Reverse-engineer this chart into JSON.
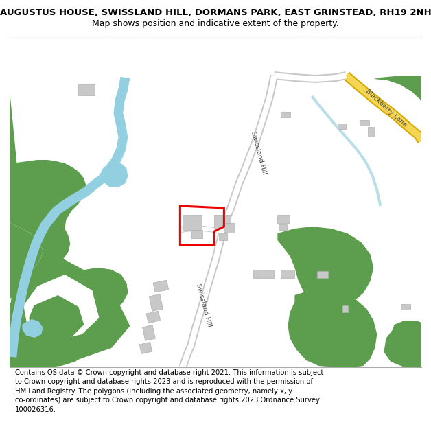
{
  "title_line1": "AUGUSTUS HOUSE, SWISSLAND HILL, DORMANS PARK, EAST GRINSTEAD, RH19 2NH",
  "title_line2": "Map shows position and indicative extent of the property.",
  "footer": "Contains OS data © Crown copyright and database right 2021. This information is subject\nto Crown copyright and database rights 2023 and is reproduced with the permission of\nHM Land Registry. The polygons (including the associated geometry, namely x, y\nco-ordinates) are subject to Crown copyright and database rights 2023 Ordnance Survey\n100026316.",
  "bg_color": "#ffffff",
  "green_color": "#5d9e4e",
  "water_color": "#92cfe0",
  "road_fill": "#ffffff",
  "road_outline": "#c8c8c8",
  "yellow_fill": "#f5d654",
  "yellow_outline": "#d4a800",
  "building_color": "#c8c8c8",
  "building_edge": "#b0b0b0",
  "red_color": "#ee0000",
  "divider_color": "#aaaaaa",
  "title_fontsize": 9.5,
  "subtitle_fontsize": 9.0,
  "footer_fontsize": 7.2,
  "label_fontsize": 6.8,
  "label_color": "#444444"
}
